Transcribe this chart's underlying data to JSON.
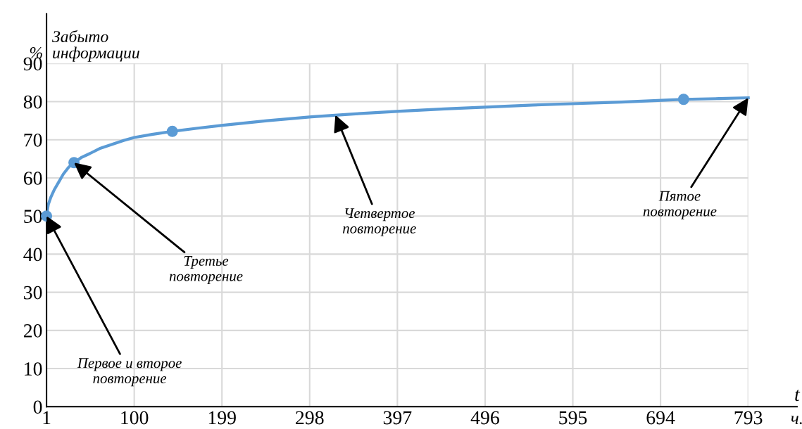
{
  "chart_data": {
    "type": "line",
    "xlabel": "t",
    "ylabel": "Забыто информации",
    "xlim": [
      1,
      793
    ],
    "ylim": [
      0,
      90
    ],
    "xticks": [
      1,
      100,
      199,
      298,
      397,
      496,
      595,
      694,
      793
    ],
    "yticks": [
      0,
      10,
      20,
      30,
      40,
      50,
      60,
      70,
      80,
      90
    ],
    "grid": true,
    "line_style": "solid",
    "series": [
      {
        "color": "#5b9bd5",
        "x": [
          1,
          3,
          6,
          10,
          15,
          20,
          26,
          32,
          40,
          50,
          62,
          75,
          88,
          100,
          120,
          143,
          170,
          200,
          250,
          300,
          350,
          400,
          450,
          500,
          550,
          600,
          650,
          700,
          720,
          760,
          793
        ],
        "values": [
          50,
          53,
          55,
          57,
          59,
          61,
          62.8,
          64,
          65.3,
          66.4,
          67.8,
          68.8,
          69.8,
          70.6,
          71.4,
          72.2,
          73,
          73.8,
          75,
          76,
          76.8,
          77.5,
          78.1,
          78.6,
          79.1,
          79.5,
          79.9,
          80.4,
          80.6,
          80.8,
          81
        ]
      },
      {
        "type": "scatter",
        "color": "#5b9bd5",
        "marker": "circle",
        "x": [
          1,
          32,
          143,
          720
        ],
        "values": [
          50,
          64,
          72.2,
          80.6
        ]
      }
    ],
    "annotations": [
      {
        "text": "Первое и второе повторение",
        "x": 1,
        "y": 50
      },
      {
        "text": "Третье повторение",
        "x": 32,
        "y": 64
      },
      {
        "text": "Четвертое повторение",
        "x": 327,
        "y": 76.5
      },
      {
        "text": "Пятое повторение",
        "x": 793,
        "y": 81
      },
      "%",
      "ч."
    ]
  }
}
